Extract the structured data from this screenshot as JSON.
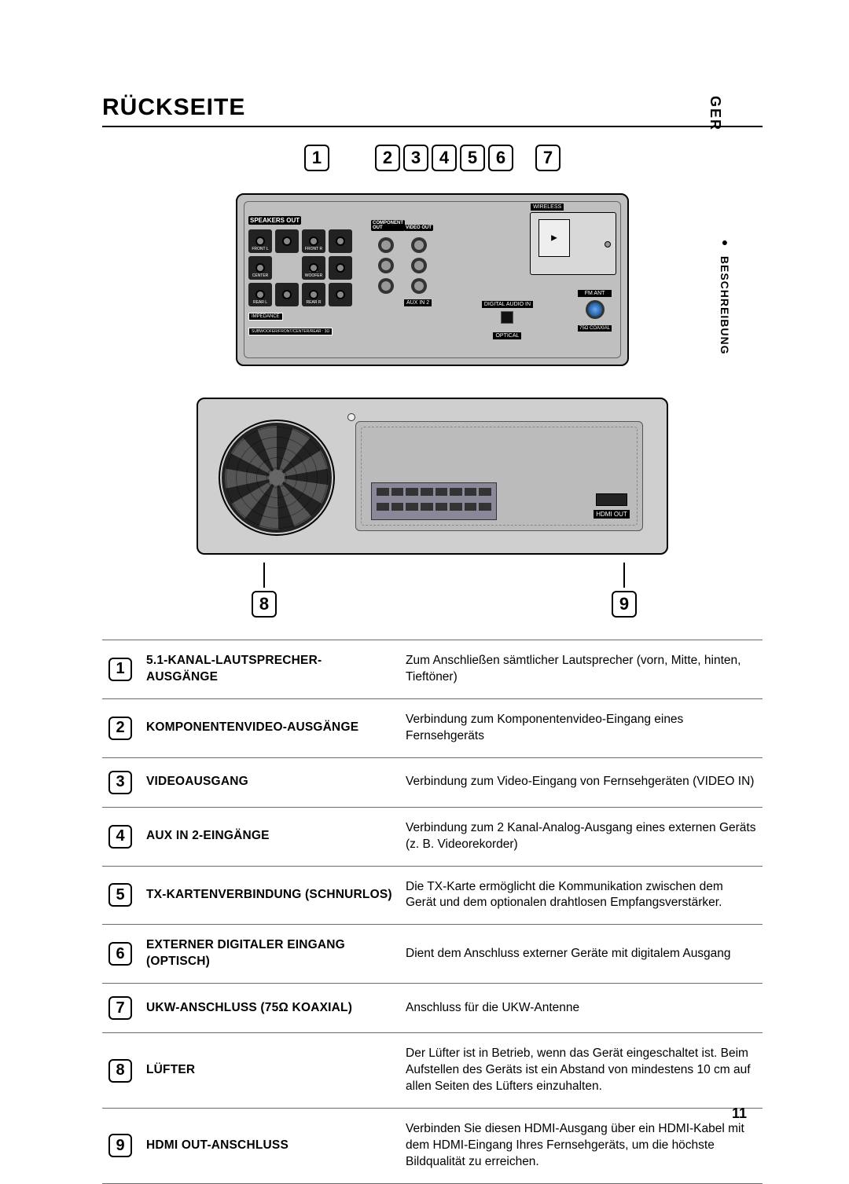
{
  "lang_tab": "GER",
  "section_tab": "BESCHREIBUNG",
  "title": "RÜCKSEITE",
  "page_number": "11",
  "callouts_top": [
    "1",
    "2",
    "3",
    "4",
    "5",
    "6",
    "7"
  ],
  "callouts_bottom_left": "8",
  "callouts_bottom_right": "9",
  "panel_labels": {
    "speakers_out": "SPEAKERS OUT",
    "component_out": "COMPONENT OUT",
    "video_out": "VIDEO OUT",
    "wireless": "WIRELESS",
    "impedance": "IMPEDANCE",
    "impedance_sub": "SUBWOOFER/FRONT/CENTER/REAR : 3Ω",
    "aux_in_2": "AUX IN 2",
    "digital_audio_in": "DIGITAL\nAUDIO IN",
    "optical": "OPTICAL",
    "fm_ant": "FM ANT",
    "fm_sub": "75Ω\nCOAXIAL",
    "hdmi_out": "HDMI OUT",
    "sp_front_l": "FRONT L",
    "sp_front_r": "FRONT R",
    "sp_center": "CENTER",
    "sp_sub": "SUB WOOFER",
    "sp_rear_l": "REAR L",
    "sp_rear_r": "REAR R"
  },
  "rows": [
    {
      "n": "1",
      "name": "5.1-KANAL-LAUTSPRECHER-AUSGÄNGE",
      "desc": "Zum Anschließen sämtlicher Lautsprecher (vorn, Mitte, hinten, Tieftöner)"
    },
    {
      "n": "2",
      "name": "KOMPONENTENVIDEO-AUSGÄNGE",
      "desc": "Verbindung zum Komponentenvideo-Eingang eines Fernsehgeräts"
    },
    {
      "n": "3",
      "name": "VIDEOAUSGANG",
      "desc": "Verbindung zum Video-Eingang von Fernsehgeräten (VIDEO IN)"
    },
    {
      "n": "4",
      "name": "AUX IN 2-EINGÄNGE",
      "desc": "Verbindung zum 2 Kanal-Analog-Ausgang eines externen Geräts (z. B. Videorekorder)"
    },
    {
      "n": "5",
      "name": "TX-KARTENVERBINDUNG (SCHNURLOS)",
      "desc": "Die TX-Karte ermöglicht die Kommunikation zwischen dem Gerät und dem optionalen drahtlosen Empfangsverstärker."
    },
    {
      "n": "6",
      "name": "EXTERNER DIGITALER EINGANG (OPTISCH)",
      "desc": "Dient dem Anschluss externer Geräte mit digitalem Ausgang"
    },
    {
      "n": "7",
      "name": "UKW-ANSCHLUSS (75Ω KOAXIAL)",
      "desc": "Anschluss für die UKW-Antenne"
    },
    {
      "n": "8",
      "name": "LÜFTER",
      "desc": "Der Lüfter ist in Betrieb, wenn das Gerät eingeschaltet ist. Beim Aufstellen des Geräts ist ein Abstand von mindestens 10 cm auf allen Seiten des Lüfters einzuhalten."
    },
    {
      "n": "9",
      "name": "HDMI OUT-ANSCHLUSS",
      "desc": "Verbinden Sie diesen HDMI-Ausgang über ein HDMI-Kabel mit dem HDMI-Eingang Ihres Fernsehgeräts, um die höchste Bildqualität zu erreichen."
    }
  ],
  "colors": {
    "panel_bg": "#bfbfbf",
    "border": "#000000",
    "table_rule": "#6b6b6b"
  }
}
